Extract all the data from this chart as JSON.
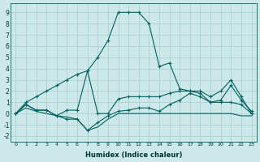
{
  "xlabel": "Humidex (Indice chaleur)",
  "background_color": "#cde8e8",
  "grid_color": "#a8cccc",
  "line_color": "#006060",
  "xlim": [
    -0.5,
    23.5
  ],
  "ylim": [
    -2.5,
    9.8
  ],
  "xticks": [
    0,
    1,
    2,
    3,
    4,
    5,
    6,
    7,
    8,
    9,
    10,
    11,
    12,
    13,
    14,
    15,
    16,
    17,
    18,
    19,
    20,
    21,
    22,
    23
  ],
  "yticks": [
    -2,
    -1,
    0,
    1,
    2,
    3,
    4,
    5,
    6,
    7,
    8,
    9
  ],
  "line1_x": [
    0,
    1,
    2,
    3,
    4,
    5,
    6,
    7,
    8,
    9,
    10,
    11,
    12,
    13,
    14,
    15,
    16,
    17,
    18,
    19,
    20,
    21,
    22,
    23
  ],
  "line1_y": [
    0.0,
    1.0,
    1.5,
    2.0,
    2.5,
    3.0,
    3.5,
    3.8,
    5.0,
    6.5,
    9.0,
    9.0,
    9.0,
    8.0,
    4.2,
    4.5,
    2.2,
    2.0,
    2.0,
    1.5,
    2.0,
    3.0,
    1.5,
    0.0
  ],
  "line2_x": [
    0,
    1,
    2,
    3,
    4,
    5,
    6,
    7,
    8,
    9,
    10,
    11,
    12,
    13,
    14,
    15,
    16,
    17,
    18,
    19,
    20,
    21,
    22,
    23
  ],
  "line2_y": [
    0.0,
    0.8,
    0.3,
    0.3,
    -0.2,
    0.3,
    0.3,
    3.8,
    0.0,
    0.0,
    1.3,
    1.5,
    1.5,
    1.5,
    1.5,
    1.8,
    2.0,
    2.0,
    1.8,
    1.0,
    1.2,
    2.5,
    1.2,
    0.2
  ],
  "line3_x": [
    0,
    1,
    2,
    3,
    4,
    5,
    6,
    7,
    8,
    9,
    10,
    11,
    12,
    13,
    14,
    15,
    16,
    17,
    18,
    19,
    20,
    21,
    22,
    23
  ],
  "line3_y": [
    0.0,
    0.8,
    0.3,
    0.3,
    -0.2,
    -0.5,
    -0.5,
    -1.5,
    -0.8,
    -0.2,
    0.2,
    0.3,
    0.5,
    0.5,
    0.2,
    0.8,
    1.2,
    1.8,
    1.5,
    1.0,
    1.0,
    1.0,
    0.8,
    0.0
  ],
  "line4_x": [
    0,
    1,
    2,
    3,
    4,
    5,
    6,
    7,
    8,
    9,
    10,
    11,
    12,
    13,
    14,
    15,
    16,
    17,
    18,
    19,
    20,
    21,
    22,
    23
  ],
  "line4_y": [
    0.0,
    0.5,
    0.2,
    0.0,
    -0.2,
    -0.3,
    -0.5,
    -1.5,
    -1.2,
    -0.5,
    0.0,
    0.0,
    0.0,
    0.0,
    0.0,
    0.0,
    0.0,
    0.0,
    0.0,
    0.0,
    0.0,
    0.0,
    -0.2,
    -0.2
  ]
}
